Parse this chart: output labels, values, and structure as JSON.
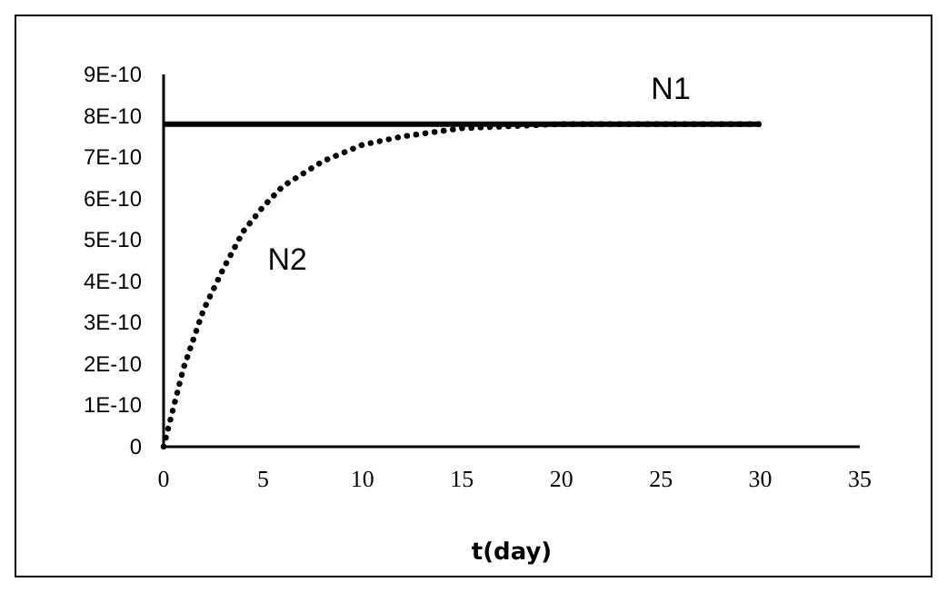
{
  "chart_data": {
    "type": "line",
    "xlabel": "t(day)",
    "xlim": [
      0,
      35
    ],
    "xticks": [
      0,
      5,
      10,
      15,
      20,
      25,
      30,
      35
    ],
    "ylim": [
      0,
      9e-10
    ],
    "yticks": [
      {
        "value": 0,
        "label": "0"
      },
      {
        "value": 1e-10,
        "label": "1E-10"
      },
      {
        "value": 2e-10,
        "label": "2E-10"
      },
      {
        "value": 3e-10,
        "label": "3E-10"
      },
      {
        "value": 4e-10,
        "label": "4E-10"
      },
      {
        "value": 5e-10,
        "label": "5E-10"
      },
      {
        "value": 6e-10,
        "label": "6E-10"
      },
      {
        "value": 7e-10,
        "label": "7E-10"
      },
      {
        "value": 8e-10,
        "label": "8E-10"
      },
      {
        "value": 9e-10,
        "label": "9E-10"
      }
    ],
    "grid": false,
    "marker": "none",
    "series": [
      {
        "name": "N1",
        "color": "#000000",
        "line_style": "solid",
        "x": [
          0,
          30
        ],
        "values": [
          7.8e-10,
          7.8e-10
        ]
      },
      {
        "name": "N2",
        "color": "#000000",
        "line_style": "dotted",
        "x": [
          0,
          1,
          2,
          3,
          4,
          5,
          6,
          8,
          10,
          12,
          15,
          20,
          25,
          30
        ],
        "values": [
          0,
          1.9e-10,
          3.3e-10,
          4.3e-10,
          5.2e-10,
          5.8e-10,
          6.3e-10,
          6.9e-10,
          7.3e-10,
          7.5e-10,
          7.7e-10,
          7.8e-10,
          7.8e-10,
          7.8e-10
        ]
      }
    ]
  }
}
